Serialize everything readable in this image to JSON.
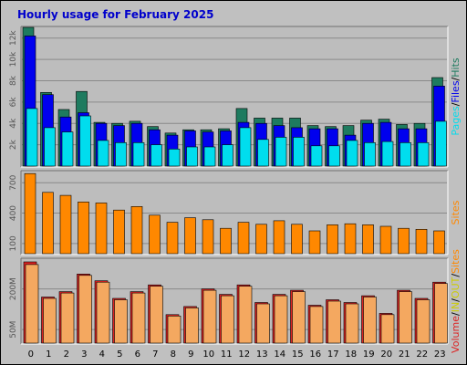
{
  "title": "Hourly usage for February 2025",
  "colors": {
    "title": "#0000cc",
    "hits": "#1e7b5f",
    "files": "#0000ee",
    "pages": "#00ddee",
    "sites": "#ff8800",
    "kb_out": "#dd2222",
    "kb_in": "#f4a860",
    "panel_bg": "#bdbdbd",
    "frame_bg": "#c0c0c0",
    "grid": "#8a8a8a",
    "legend_in": "#cccc00"
  },
  "chart_data": [
    {
      "type": "bar",
      "panel": "hits",
      "categories": [
        "0",
        "1",
        "2",
        "3",
        "4",
        "5",
        "6",
        "7",
        "8",
        "9",
        "10",
        "11",
        "12",
        "13",
        "14",
        "15",
        "16",
        "17",
        "18",
        "19",
        "20",
        "21",
        "22",
        "23"
      ],
      "ylim": [
        0,
        13000
      ],
      "yticks": [
        "2k",
        "4k",
        "6k",
        "8k",
        "10k",
        "12k"
      ],
      "ytick_values": [
        2000,
        4000,
        6000,
        8000,
        10000,
        12000
      ],
      "legend": [
        "Pages",
        "/",
        "Files",
        "/",
        "Hits"
      ],
      "series": [
        {
          "name": "Hits",
          "values": [
            13000,
            6900,
            5300,
            7000,
            4100,
            4000,
            4200,
            3700,
            3100,
            3400,
            3400,
            3500,
            5400,
            4500,
            4500,
            4500,
            3800,
            3700,
            3800,
            4300,
            4400,
            3900,
            4000,
            8300
          ]
        },
        {
          "name": "Files",
          "values": [
            12200,
            6700,
            4600,
            5000,
            4000,
            3800,
            4000,
            3400,
            2900,
            3300,
            3200,
            3300,
            4100,
            4000,
            3800,
            3600,
            3500,
            3500,
            2900,
            4000,
            4100,
            3500,
            3500,
            7500
          ]
        },
        {
          "name": "Pages",
          "values": [
            5400,
            3600,
            3200,
            4700,
            2400,
            2200,
            2200,
            2000,
            1600,
            1800,
            1800,
            2000,
            3600,
            2500,
            2700,
            2700,
            1900,
            1900,
            2400,
            2200,
            2300,
            2200,
            2200,
            4200
          ]
        }
      ]
    },
    {
      "type": "bar",
      "panel": "sites",
      "categories": [
        "0",
        "1",
        "2",
        "3",
        "4",
        "5",
        "6",
        "7",
        "8",
        "9",
        "10",
        "11",
        "12",
        "13",
        "14",
        "15",
        "16",
        "17",
        "18",
        "19",
        "20",
        "21",
        "22",
        "23"
      ],
      "ylim": [
        0,
        810
      ],
      "yticks": [
        "100",
        "400",
        "700"
      ],
      "ytick_values": [
        100,
        400,
        700
      ],
      "legend": [
        "Sites"
      ],
      "series": [
        {
          "name": "Sites",
          "values": [
            790,
            605,
            575,
            510,
            500,
            430,
            465,
            380,
            310,
            355,
            335,
            250,
            310,
            290,
            325,
            290,
            225,
            285,
            295,
            285,
            270,
            250,
            240,
            225
          ]
        }
      ]
    },
    {
      "type": "bar",
      "panel": "volume",
      "categories": [
        "0",
        "1",
        "2",
        "3",
        "4",
        "5",
        "6",
        "7",
        "8",
        "9",
        "10",
        "11",
        "12",
        "13",
        "14",
        "15",
        "16",
        "17",
        "18",
        "19",
        "20",
        "21",
        "22",
        "23"
      ],
      "ylim": [
        0,
        3100
      ],
      "yticks": [
        "50M",
        "200M"
      ],
      "ytick_values": [
        500,
        2000
      ],
      "legend": [
        "Volume",
        "/",
        "IN",
        "/",
        "OUT",
        "/",
        "Sites"
      ],
      "series": [
        {
          "name": "Volume",
          "values": [
            3000,
            1700,
            1900,
            2550,
            2300,
            1650,
            1900,
            2150,
            1050,
            1350,
            2000,
            1800,
            2150,
            1500,
            1800,
            1950,
            1400,
            1600,
            1500,
            1750,
            1100,
            1950,
            1650,
            2250
          ]
        },
        {
          "name": "IN",
          "values": [
            2900,
            1650,
            1850,
            2500,
            2250,
            1600,
            1850,
            2100,
            1000,
            1300,
            1950,
            1750,
            2100,
            1450,
            1750,
            1900,
            1350,
            1550,
            1450,
            1700,
            1050,
            1900,
            1600,
            2200
          ]
        }
      ]
    }
  ]
}
